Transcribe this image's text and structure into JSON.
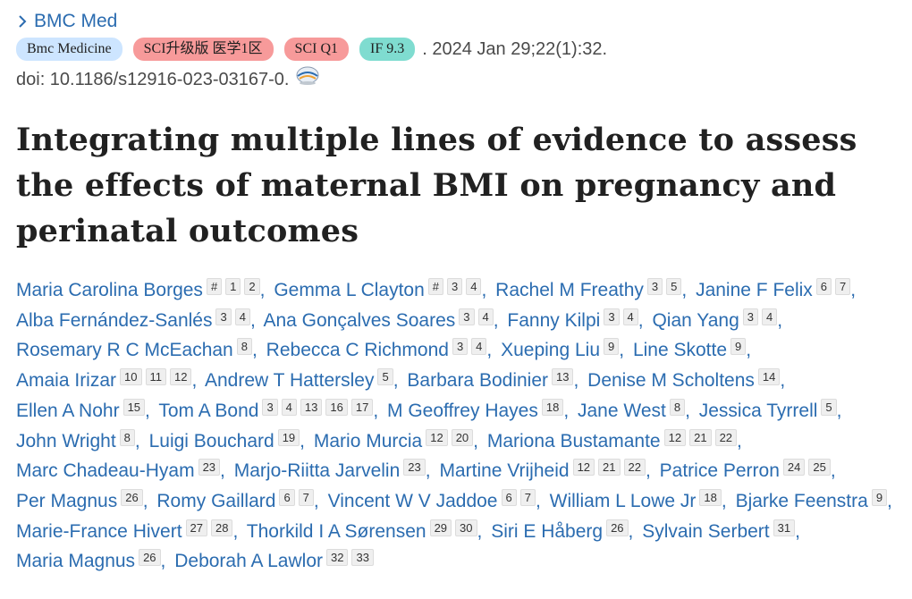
{
  "journal": {
    "label": "BMC Med"
  },
  "badges": [
    {
      "label": "Bmc Medicine",
      "style": "blue"
    },
    {
      "label": "SCI升级版 医学1区",
      "style": "red"
    },
    {
      "label": "SCI Q1",
      "style": "red"
    },
    {
      "label": "IF 9.3",
      "style": "teal"
    }
  ],
  "pub_date": ". 2024 Jan 29;22(1):32.",
  "doi": "doi: 10.1186/s12916-023-03167-0.",
  "title": "Integrating multiple lines of evidence to assess the effects of maternal BMI on pregnancy and perinatal outcomes",
  "colors": {
    "link": "#2b6cb0",
    "badge_blue": "#cde5ff",
    "badge_red": "#f79a9a",
    "badge_teal": "#7fdcd0"
  },
  "authors": [
    {
      "name": "Maria Carolina Borges",
      "affs": [
        "#",
        "1",
        "2"
      ]
    },
    {
      "name": "Gemma L Clayton",
      "affs": [
        "#",
        "3",
        "4"
      ]
    },
    {
      "name": "Rachel M Freathy",
      "affs": [
        "3",
        "5"
      ]
    },
    {
      "name": "Janine F Felix",
      "affs": [
        "6",
        "7"
      ]
    },
    {
      "name": "Alba Fernández-Sanlés",
      "affs": [
        "3",
        "4"
      ]
    },
    {
      "name": "Ana Gonçalves Soares",
      "affs": [
        "3",
        "4"
      ]
    },
    {
      "name": "Fanny Kilpi",
      "affs": [
        "3",
        "4"
      ]
    },
    {
      "name": "Qian Yang",
      "affs": [
        "3",
        "4"
      ]
    },
    {
      "name": "Rosemary R C McEachan",
      "affs": [
        "8"
      ]
    },
    {
      "name": "Rebecca C Richmond",
      "affs": [
        "3",
        "4"
      ]
    },
    {
      "name": "Xueping Liu",
      "affs": [
        "9"
      ]
    },
    {
      "name": "Line Skotte",
      "affs": [
        "9"
      ]
    },
    {
      "name": "Amaia Irizar",
      "affs": [
        "10",
        "11",
        "12"
      ]
    },
    {
      "name": "Andrew T Hattersley",
      "affs": [
        "5"
      ]
    },
    {
      "name": "Barbara Bodinier",
      "affs": [
        "13"
      ]
    },
    {
      "name": "Denise M Scholtens",
      "affs": [
        "14"
      ]
    },
    {
      "name": "Ellen A Nohr",
      "affs": [
        "15"
      ]
    },
    {
      "name": "Tom A Bond",
      "affs": [
        "3",
        "4",
        "13",
        "16",
        "17"
      ]
    },
    {
      "name": "M Geoffrey Hayes",
      "affs": [
        "18"
      ]
    },
    {
      "name": "Jane West",
      "affs": [
        "8"
      ]
    },
    {
      "name": "Jessica Tyrrell",
      "affs": [
        "5"
      ]
    },
    {
      "name": "John Wright",
      "affs": [
        "8"
      ]
    },
    {
      "name": "Luigi Bouchard",
      "affs": [
        "19"
      ]
    },
    {
      "name": "Mario Murcia",
      "affs": [
        "12",
        "20"
      ]
    },
    {
      "name": "Mariona Bustamante",
      "affs": [
        "12",
        "21",
        "22"
      ]
    },
    {
      "name": "Marc Chadeau-Hyam",
      "affs": [
        "23"
      ]
    },
    {
      "name": "Marjo-Riitta Jarvelin",
      "affs": [
        "23"
      ]
    },
    {
      "name": "Martine Vrijheid",
      "affs": [
        "12",
        "21",
        "22"
      ]
    },
    {
      "name": "Patrice Perron",
      "affs": [
        "24",
        "25"
      ]
    },
    {
      "name": "Per Magnus",
      "affs": [
        "26"
      ]
    },
    {
      "name": "Romy Gaillard",
      "affs": [
        "6",
        "7"
      ]
    },
    {
      "name": "Vincent W V Jaddoe",
      "affs": [
        "6",
        "7"
      ]
    },
    {
      "name": "William L Lowe Jr",
      "affs": [
        "18"
      ]
    },
    {
      "name": "Bjarke Feenstra",
      "affs": [
        "9"
      ]
    },
    {
      "name": "Marie-France Hivert",
      "affs": [
        "27",
        "28"
      ]
    },
    {
      "name": "Thorkild I A Sørensen",
      "affs": [
        "29",
        "30"
      ]
    },
    {
      "name": "Siri E Håberg",
      "affs": [
        "26"
      ]
    },
    {
      "name": "Sylvain Serbert",
      "affs": [
        "31"
      ]
    },
    {
      "name": "Maria Magnus",
      "affs": [
        "26"
      ]
    },
    {
      "name": "Deborah A Lawlor",
      "affs": [
        "32",
        "33"
      ]
    }
  ],
  "line_breaks_after": [
    3,
    7,
    11,
    15,
    20,
    24,
    28,
    33,
    37
  ]
}
